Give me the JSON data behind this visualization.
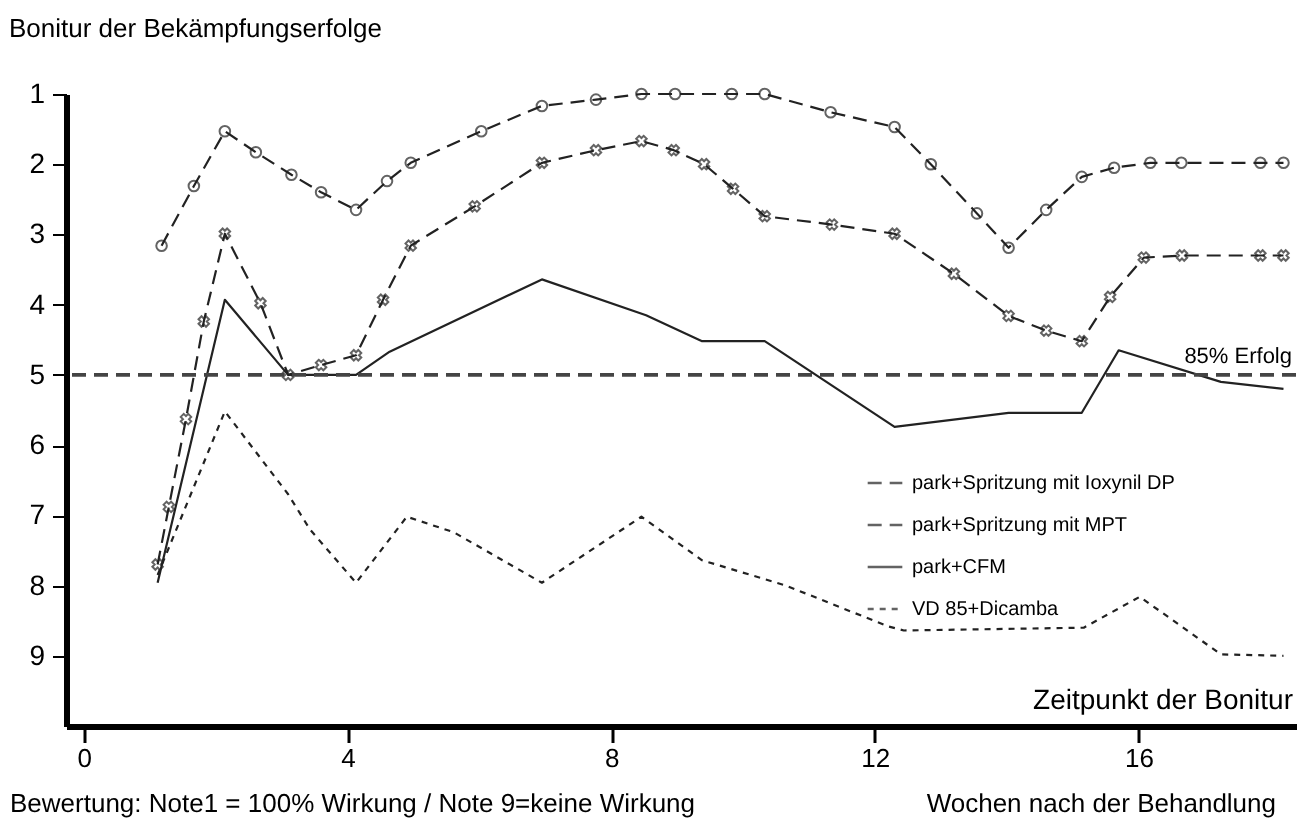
{
  "chart_data": {
    "type": "line",
    "ylabel": "Bonitur der Bekämpfungserfolge",
    "xlabel": "Zeitpunkt der Bonitur",
    "annotations": [
      "Bewertung: Note1 = 100% Wirkung / Note 9=keine Wirkung",
      "Wochen nach der Behandlung"
    ],
    "xlim": [
      -0.27,
      18.39
    ],
    "xticks": [
      0,
      4,
      8,
      12,
      16
    ],
    "ylim": [
      10,
      1
    ],
    "yticks": [
      1,
      2,
      3,
      4,
      5,
      6,
      7,
      8,
      9
    ],
    "grid": false,
    "legend": "right",
    "ref_lines": [
      {
        "axis": "y",
        "value": 5,
        "label": "85% Erfolg",
        "line_style": "dashed"
      }
    ],
    "series": [
      {
        "name": "park+Spritzung mit Ioxynil DP",
        "color": "#222222",
        "marker": "circle",
        "line_style": "dashed",
        "x": [
          1.18,
          1.67,
          2.14,
          2.61,
          3.15,
          3.6,
          4.13,
          4.6,
          4.96,
          6.03,
          6.95,
          7.77,
          8.46,
          8.97,
          9.83,
          10.33,
          11.33,
          12.3,
          12.85,
          13.55,
          14.03,
          14.6,
          15.14,
          15.63,
          16.18,
          16.65,
          17.85,
          18.2
        ],
        "values": [
          3.16,
          2.31,
          1.53,
          1.83,
          2.15,
          2.4,
          2.65,
          2.24,
          1.98,
          1.53,
          1.17,
          1.08,
          1.0,
          1.0,
          1.0,
          1.0,
          1.26,
          1.47,
          2.0,
          2.7,
          3.19,
          2.65,
          2.18,
          2.05,
          1.98,
          1.98,
          1.98,
          1.98
        ]
      },
      {
        "name": "park+Spritzung mit MPT",
        "color": "#222222",
        "marker": "cross",
        "line_style": "dashed",
        "x": [
          1.12,
          1.29,
          1.55,
          1.82,
          2.14,
          2.68,
          3.1,
          3.6,
          4.13,
          4.54,
          4.96,
          5.93,
          6.95,
          7.77,
          8.46,
          8.95,
          9.41,
          9.85,
          10.33,
          11.35,
          12.3,
          13.2,
          14.03,
          14.6,
          15.14,
          15.57,
          16.08,
          16.66,
          17.85,
          18.2
        ],
        "values": [
          7.7,
          6.88,
          5.63,
          4.24,
          2.99,
          3.98,
          5.0,
          4.86,
          4.72,
          3.93,
          3.16,
          2.6,
          1.98,
          1.8,
          1.67,
          1.8,
          2.0,
          2.35,
          2.74,
          2.86,
          2.99,
          3.56,
          4.16,
          4.37,
          4.52,
          3.89,
          3.33,
          3.3,
          3.3,
          3.3
        ]
      },
      {
        "name": "park+CFM",
        "color": "#222222",
        "marker": "none",
        "line_style": "solid",
        "x": [
          1.12,
          2.14,
          3.1,
          4.13,
          4.64,
          6.95,
          8.53,
          9.38,
          10.33,
          12.3,
          14.03,
          15.14,
          15.7,
          17.25,
          18.2
        ],
        "values": [
          7.96,
          3.93,
          5.0,
          5.0,
          4.67,
          3.64,
          4.15,
          4.52,
          4.52,
          5.74,
          5.54,
          5.54,
          4.65,
          5.1,
          5.2
        ]
      },
      {
        "name": "VD 85+Dicamba",
        "color": "#222222",
        "marker": "none",
        "line_style": "dotted",
        "x": [
          1.12,
          2.14,
          3.1,
          3.43,
          4.13,
          4.9,
          5.61,
          6.95,
          8.46,
          9.38,
          10.65,
          12.2,
          12.44,
          15.17,
          16.02,
          17.25,
          18.2
        ],
        "values": [
          7.85,
          5.52,
          6.7,
          7.2,
          7.96,
          7.02,
          7.24,
          7.96,
          7.02,
          7.64,
          8.0,
          8.58,
          8.64,
          8.6,
          8.16,
          8.98,
          9.0
        ]
      }
    ]
  }
}
